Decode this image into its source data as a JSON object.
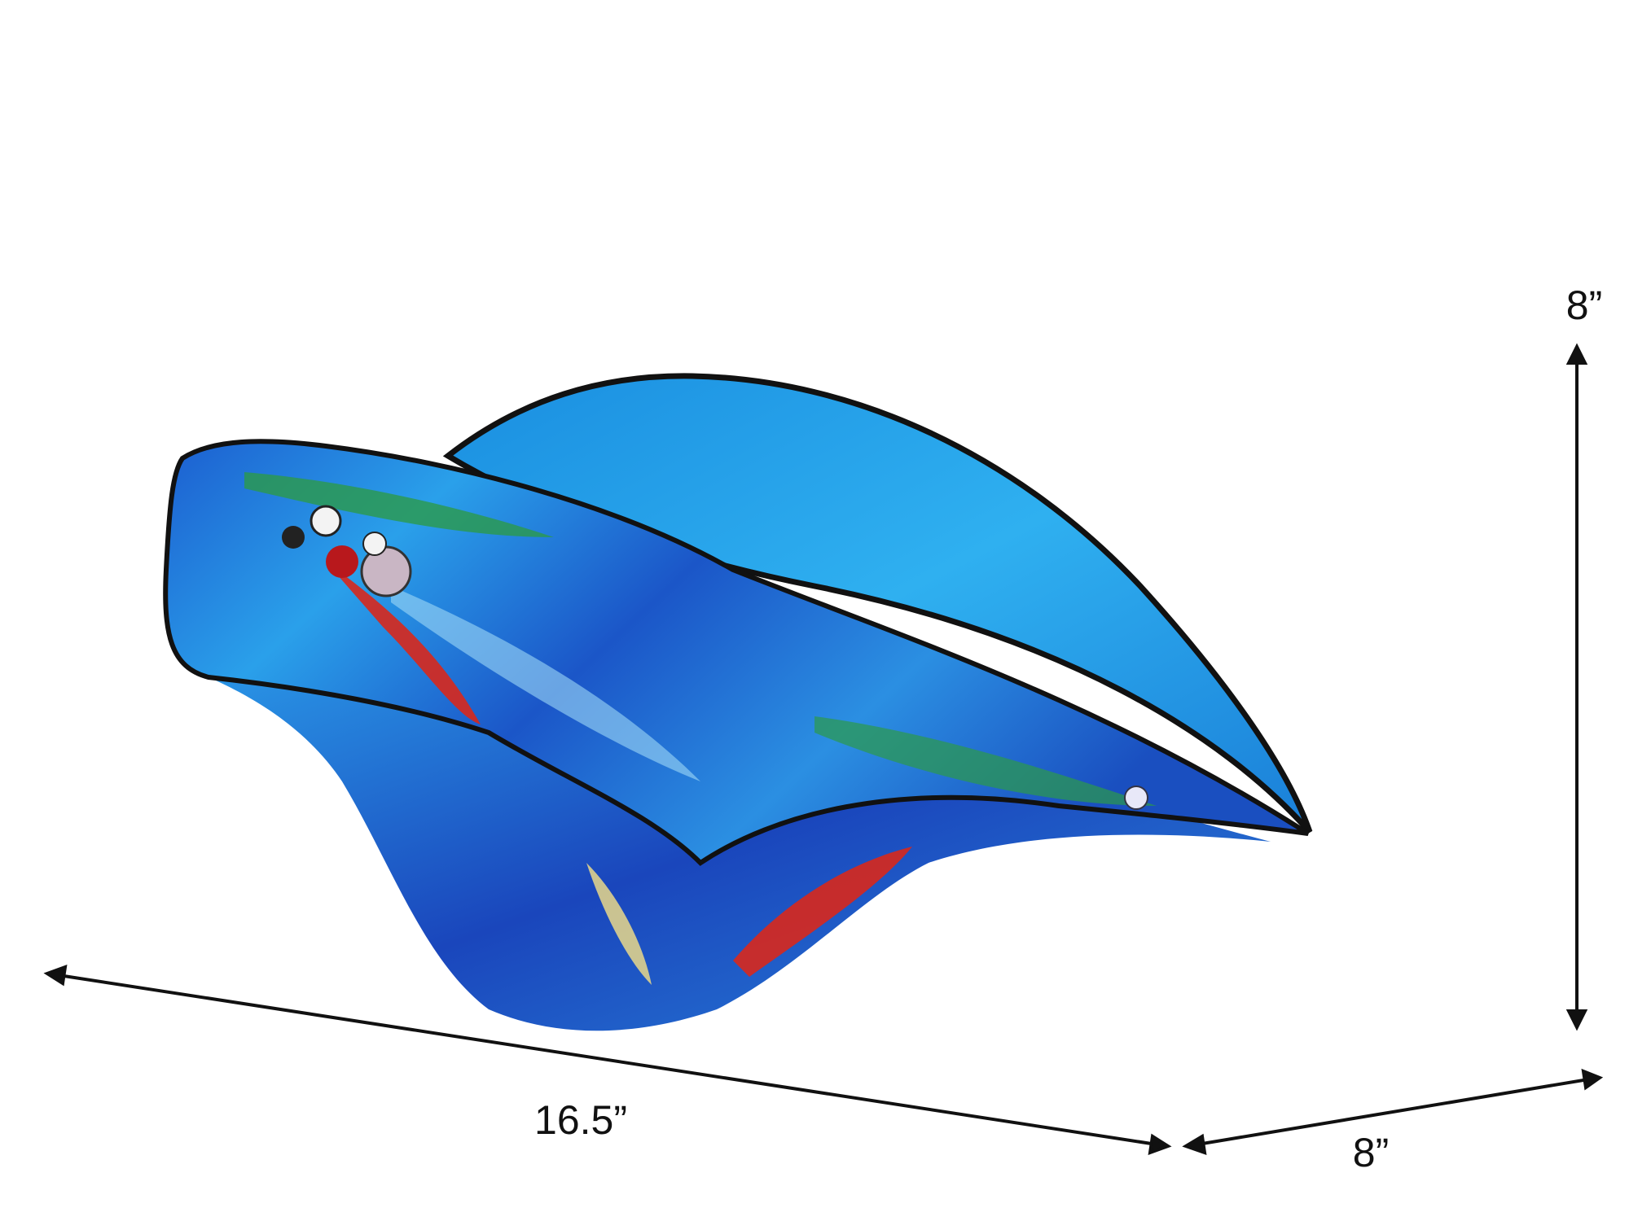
{
  "dimensions": {
    "height_label": "8”",
    "width_label": "16.5”",
    "depth_label": "8”"
  },
  "product": {
    "icon": "art-glass-bowl-image",
    "colors": {
      "primary": "#1e90e0",
      "deep": "#1740b8",
      "accent_red": "#d8281c",
      "accent_green": "#2c9a4a",
      "rim": "#111111"
    }
  }
}
